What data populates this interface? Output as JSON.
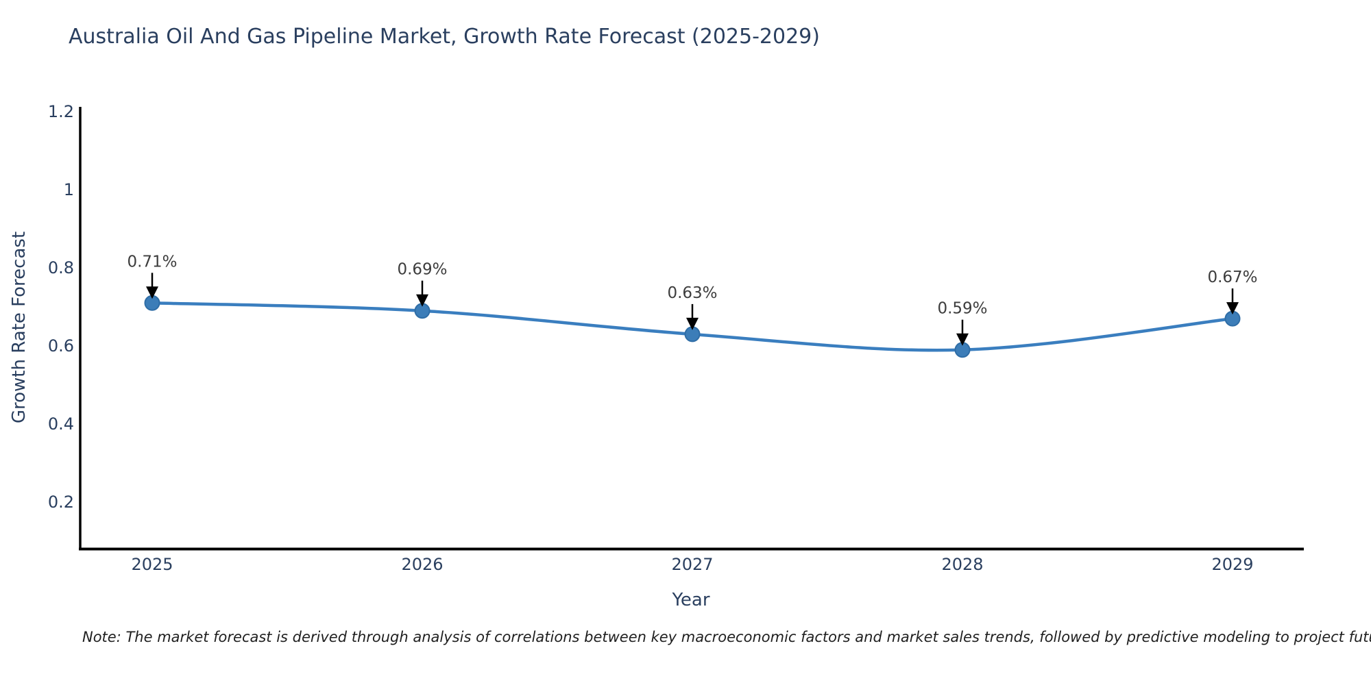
{
  "chart_data": {
    "type": "line",
    "title": "Australia Oil And Gas Pipeline Market, Growth Rate Forecast (2025-2029)",
    "xlabel": "Year",
    "ylabel": "Growth Rate Forecast",
    "x": [
      2025,
      2026,
      2027,
      2028,
      2029
    ],
    "series": [
      {
        "name": "Growth Rate Forecast",
        "values": [
          0.71,
          0.69,
          0.63,
          0.59,
          0.67
        ],
        "point_labels": [
          "0.71%",
          "0.69%",
          "0.63%",
          "0.59%",
          "0.67%"
        ]
      }
    ],
    "xtick_labels": [
      "2025",
      "2026",
      "2027",
      "2028",
      "2029"
    ],
    "ytick_values": [
      1.2,
      1.0,
      0.8,
      0.6,
      0.4,
      0.2
    ],
    "ytick_labels": [
      "1.2",
      "1",
      "0.8",
      "0.6",
      "0.4",
      "0.2"
    ],
    "ylim": [
      0.08,
      1.22
    ],
    "grid": false,
    "legend": "none",
    "line_style": "spline",
    "colors": {
      "line": "#3a7ebf",
      "marker_fill": "#3c7db8",
      "marker_edge": "#2f6da6",
      "axis": "#000000",
      "title_text": "#2a3f5f",
      "tick_text": "#2a3f5f",
      "annotation_text": "#3d3d3d",
      "annotation_arrow": "#000000",
      "background": "#ffffff"
    },
    "note": "Note: The market forecast is derived through analysis of correlations between key macroeconomic factors and market sales trends, followed by predictive modeling to project future sales"
  }
}
